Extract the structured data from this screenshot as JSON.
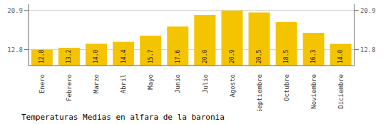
{
  "chart_data": {
    "type": "bar",
    "title": "Temperaturas Medias en alfara de la baronia",
    "categories": [
      "Enero",
      "Febrero",
      "Marzo",
      "Abril",
      "Mayo",
      "Junio",
      "Julio",
      "Agosto",
      "Septiembre",
      "Octubre",
      "Noviembre",
      "Diciembre"
    ],
    "values": [
      12.8,
      13.2,
      14.0,
      14.4,
      15.7,
      17.6,
      20.0,
      20.9,
      20.5,
      18.5,
      16.3,
      14.0
    ],
    "value_labels": [
      "12.8",
      "13.2",
      "14.0",
      "14.4",
      "15.7",
      "17.6",
      "20.0",
      "20.9",
      "20.5",
      "18.5",
      "16.3",
      "14.0"
    ],
    "color": "#F5C400",
    "ylim": [
      9.5,
      22.2
    ],
    "yticks": [
      12.8,
      20.9
    ],
    "y2lim": [
      9.5,
      22.2
    ],
    "y2ticks": [
      12.8,
      20.9
    ],
    "grid": true,
    "data_labels": true
  }
}
